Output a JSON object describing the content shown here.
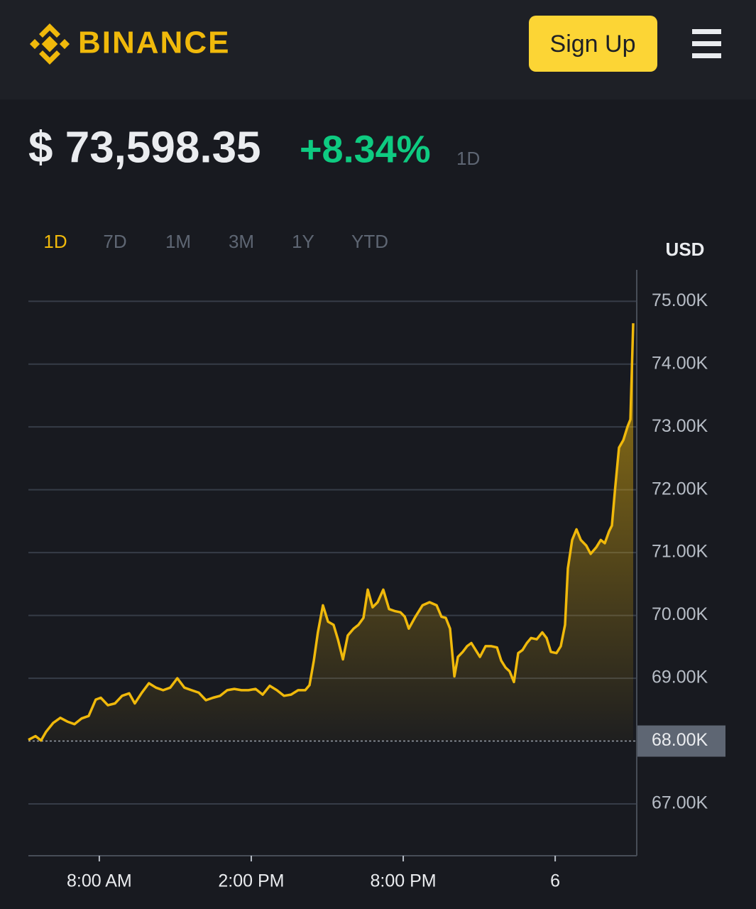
{
  "header": {
    "logo_text": "BINANCE",
    "sign_up": "Sign Up"
  },
  "price": {
    "value": "$ 73,598.35",
    "change": "+8.34%",
    "period": "1D"
  },
  "tabs": [
    "1D",
    "7D",
    "1M",
    "3M",
    "1Y",
    "YTD"
  ],
  "active_tab": 0,
  "chart_data": {
    "type": "line",
    "unit": "USD",
    "color": "#f0b90b",
    "grid": true,
    "baseline": 68000,
    "x": [
      5.2,
      5.48,
      5.7,
      5.9,
      6.18,
      6.46,
      6.74,
      7.02,
      7.3,
      7.58,
      7.86,
      8.06,
      8.34,
      8.62,
      8.9,
      9.18,
      9.4,
      9.68,
      9.96,
      10.24,
      10.52,
      10.8,
      11.08,
      11.36,
      11.64,
      11.93,
      12.21,
      12.49,
      12.77,
      13.05,
      13.33,
      13.61,
      13.89,
      14.17,
      14.45,
      14.73,
      15.01,
      15.29,
      15.57,
      15.85,
      16.13,
      16.3,
      16.47,
      16.63,
      16.83,
      17.03,
      17.25,
      17.42,
      17.62,
      17.81,
      18.04,
      18.23,
      18.43,
      18.6,
      18.79,
      18.99,
      19.21,
      19.44,
      19.66,
      19.89,
      20.06,
      20.22,
      20.48,
      20.76,
      21.04,
      21.32,
      21.51,
      21.68,
      21.85,
      22.02,
      22.16,
      22.35,
      22.52,
      22.69,
      22.86,
      23.03,
      23.25,
      23.48,
      23.7,
      23.87,
      24.04,
      24.2,
      24.37,
      24.54,
      24.71,
      24.88,
      25.05,
      25.27,
      25.49,
      25.66,
      25.83,
      26.05,
      26.22,
      26.39,
      26.5,
      26.67,
      26.84,
      27.01,
      27.23,
      27.4,
      27.63,
      27.8,
      27.96,
      28.13,
      28.24,
      28.36,
      28.52,
      28.69,
      28.86,
      28.97,
      29.08
    ],
    "values": [
      68020,
      68080,
      68010,
      68150,
      68290,
      68370,
      68310,
      68270,
      68360,
      68400,
      68660,
      68690,
      68570,
      68600,
      68720,
      68760,
      68600,
      68770,
      68920,
      68850,
      68810,
      68850,
      69000,
      68850,
      68810,
      68770,
      68650,
      68690,
      68720,
      68810,
      68830,
      68810,
      68810,
      68830,
      68740,
      68880,
      68810,
      68720,
      68740,
      68810,
      68810,
      68890,
      69280,
      69730,
      70160,
      69900,
      69850,
      69620,
      69300,
      69680,
      69790,
      69850,
      69960,
      70410,
      70130,
      70210,
      70410,
      70100,
      70070,
      70050,
      69980,
      69790,
      69980,
      70160,
      70210,
      70160,
      69980,
      69960,
      69790,
      69030,
      69340,
      69420,
      69510,
      69560,
      69450,
      69340,
      69510,
      69510,
      69490,
      69280,
      69170,
      69110,
      68940,
      69400,
      69450,
      69560,
      69640,
      69620,
      69730,
      69640,
      69420,
      69400,
      69510,
      69850,
      70750,
      71200,
      71370,
      71200,
      71110,
      70980,
      71090,
      71200,
      71150,
      71340,
      71430,
      71990,
      72670,
      72790,
      73010,
      73120,
      74650
    ],
    "xlim": [
      5.2,
      29.22
    ],
    "xticks": [
      {
        "value": 8,
        "label": "8:00 AM"
      },
      {
        "value": 14,
        "label": "2:00 PM"
      },
      {
        "value": 20,
        "label": "8:00 PM"
      },
      {
        "value": 26,
        "label": "6"
      }
    ],
    "ylim": [
      66175,
      75500
    ],
    "yticks": [
      {
        "value": 67000,
        "label": "67.00K"
      },
      {
        "value": 68000,
        "label": "68.00K"
      },
      {
        "value": 69000,
        "label": "69.00K"
      },
      {
        "value": 70000,
        "label": "70.00K"
      },
      {
        "value": 71000,
        "label": "71.00K"
      },
      {
        "value": 72000,
        "label": "72.00K"
      },
      {
        "value": 73000,
        "label": "73.00K"
      },
      {
        "value": 74000,
        "label": "74.00K"
      },
      {
        "value": 75000,
        "label": "75.00K"
      }
    ]
  }
}
